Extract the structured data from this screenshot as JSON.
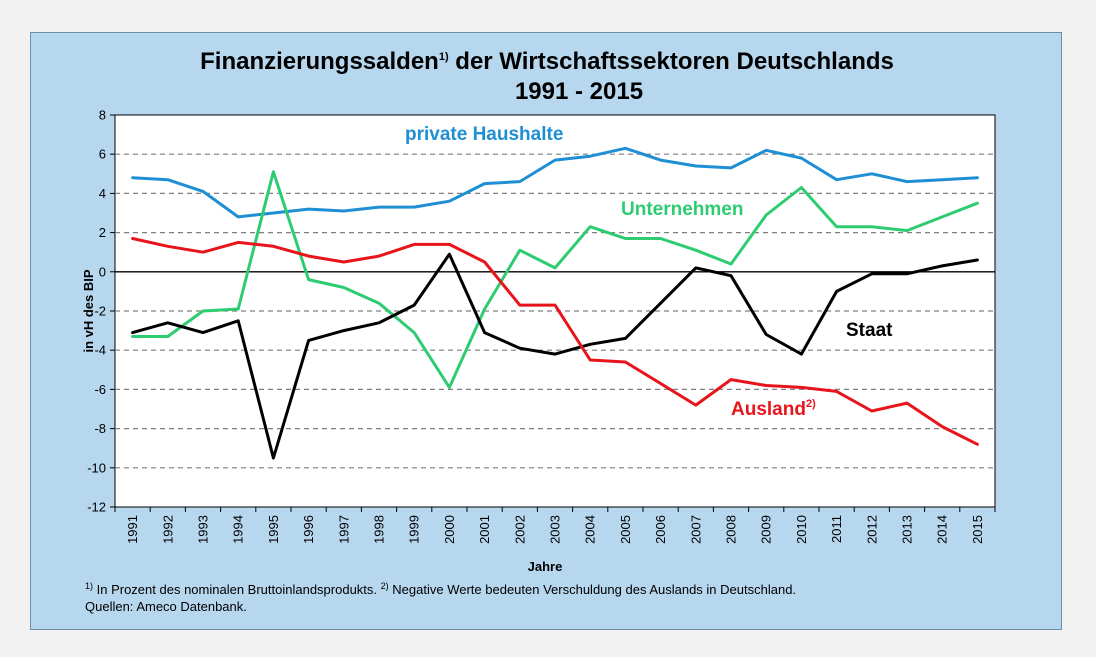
{
  "chart_data": {
    "type": "line",
    "title": "Finanzierungssalden",
    "title_sup": "1)",
    "title_rest": " der Wirtschaftssektoren Deutschlands",
    "subtitle": "1991 - 2015",
    "xlabel": "Jahre",
    "ylabel": "in vH des BIP",
    "ylim": [
      -12,
      8
    ],
    "yticks": [
      8,
      6,
      4,
      2,
      0,
      -2,
      -4,
      -6,
      -8,
      -10,
      -12
    ],
    "grid": "horizontal dashed",
    "x": [
      "1991",
      "1992",
      "1993",
      "1994",
      "1995",
      "1996",
      "1997",
      "1998",
      "1999",
      "2000",
      "2001",
      "2002",
      "2003",
      "2004",
      "2005",
      "2006",
      "2007",
      "2008",
      "2009",
      "2010",
      "2011",
      "2012",
      "2013",
      "2014",
      "2015"
    ],
    "series": [
      {
        "name": "private Haushalte",
        "label": "private Haushalte",
        "label_sup": "",
        "color": "#1f8fd3",
        "values": [
          4.8,
          4.7,
          4.1,
          2.8,
          3.0,
          3.2,
          3.1,
          3.3,
          3.3,
          3.6,
          4.5,
          4.6,
          5.7,
          5.9,
          6.3,
          5.7,
          5.4,
          5.3,
          6.2,
          5.8,
          4.7,
          5.0,
          4.6,
          4.7,
          4.8
        ]
      },
      {
        "name": "Unternehmen",
        "label": "Unternehmen",
        "label_sup": "",
        "color": "#2ecc71",
        "values": [
          -3.3,
          -3.3,
          -2.0,
          -1.9,
          5.1,
          -0.4,
          -0.8,
          -1.6,
          -3.1,
          -5.9,
          -1.9,
          1.1,
          0.2,
          2.3,
          1.7,
          1.7,
          1.1,
          0.4,
          2.9,
          4.3,
          2.3,
          2.3,
          2.1,
          2.8,
          3.5
        ]
      },
      {
        "name": "Staat",
        "label": "Staat",
        "label_sup": "",
        "color": "#000000",
        "values": [
          -3.1,
          -2.6,
          -3.1,
          -2.5,
          -9.5,
          -3.5,
          -3.0,
          -2.6,
          -1.7,
          0.9,
          -3.1,
          -3.9,
          -4.2,
          -3.7,
          -3.4,
          -1.6,
          0.2,
          -0.2,
          -3.2,
          -4.2,
          -1.0,
          -0.1,
          -0.1,
          0.3,
          0.6
        ]
      },
      {
        "name": "Ausland",
        "label": "Ausland",
        "label_sup": "2)",
        "color": "#e8141b",
        "values": [
          1.7,
          1.3,
          1.0,
          1.5,
          1.3,
          0.8,
          0.5,
          0.8,
          1.4,
          1.4,
          0.5,
          -1.7,
          -1.7,
          -4.5,
          -4.6,
          -5.7,
          -6.8,
          -5.5,
          -5.8,
          -5.9,
          -6.1,
          -7.1,
          -6.7,
          -7.9,
          -8.8
        ]
      }
    ]
  },
  "footnotes": {
    "note1_sup": "1)",
    "note1": " In Prozent des nominalen Bruttoinlandsprodukts.",
    "note2_sup": "2)",
    "note2": " Negative Werte bedeuten Verschuldung des Auslands in Deutschland.",
    "sources": "Quellen: Ameco Datenbank."
  },
  "colors": {
    "background": "#b7d7ee",
    "frame_border": "#6f8fa8",
    "page": "#f2f2f2"
  }
}
